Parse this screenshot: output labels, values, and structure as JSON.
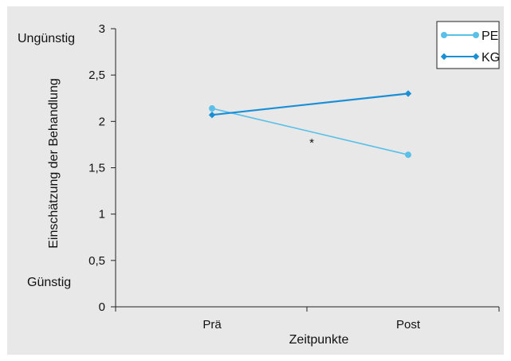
{
  "chart_data": {
    "type": "line",
    "xlabel": "Zeitpunkte",
    "ylabel": "Einschätzung der Behandlung",
    "categories": [
      "Prä",
      "Post"
    ],
    "ylim": [
      0,
      3
    ],
    "yticks": [
      "0",
      "0,5",
      "1",
      "1,5",
      "2",
      "2,5",
      "3"
    ],
    "ytick_values": [
      0,
      0.5,
      1,
      1.5,
      2,
      2.5,
      3
    ],
    "y_annotations": {
      "top": "Ungünstig",
      "bottom": "Günstig"
    },
    "annotation": "*",
    "legend_position": "top-right",
    "grid": false,
    "series": [
      {
        "name": "PE",
        "values": [
          2.14,
          1.64
        ],
        "color": "#5bc0e8",
        "marker": "circle"
      },
      {
        "name": "KG",
        "values": [
          2.07,
          2.3
        ],
        "color": "#1a8fd6",
        "marker": "diamond"
      }
    ]
  }
}
